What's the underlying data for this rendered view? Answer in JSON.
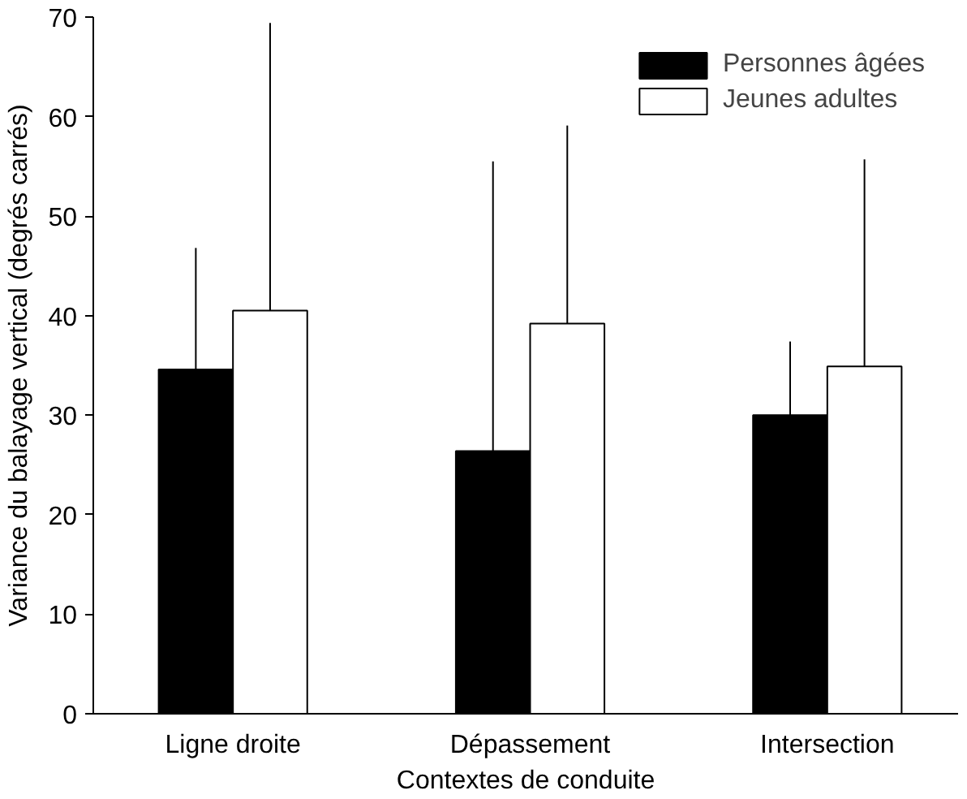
{
  "chart_data": {
    "type": "bar",
    "xlabel": "Contextes de conduite",
    "ylabel": "Variance du balayage vertical (degrés carrés)",
    "categories": [
      "Ligne droite",
      "Dépassement",
      "Intersection"
    ],
    "series": [
      {
        "name": "Personnes âgées",
        "color": "#000000",
        "values": [
          34.6,
          26.4,
          30.0
        ],
        "errors": [
          [
            34.6,
            46.8
          ],
          [
            26.4,
            55.5
          ],
          [
            30.0,
            37.4
          ]
        ]
      },
      {
        "name": "Jeunes adultes",
        "color": "#ffffff",
        "values": [
          40.5,
          39.2,
          34.9
        ],
        "errors": [
          [
            40.5,
            69.4
          ],
          [
            39.2,
            59.1
          ],
          [
            34.9,
            55.7
          ]
        ]
      }
    ],
    "ylim": [
      0,
      70
    ],
    "yticks": [
      0,
      10,
      20,
      30,
      40,
      50,
      60,
      70
    ],
    "grid": false,
    "legend": "top right"
  }
}
